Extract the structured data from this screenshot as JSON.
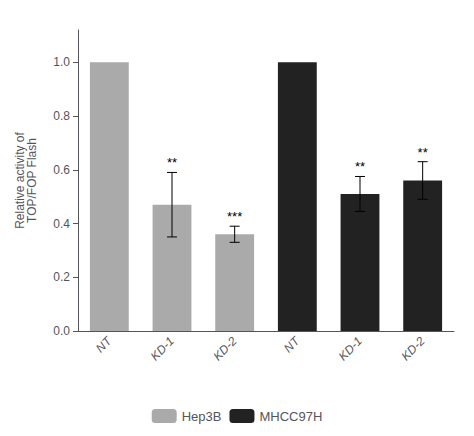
{
  "chart_data": {
    "type": "bar",
    "y_label": "Relative activity of\nTOP/FOP Flash",
    "categories": [
      "NT",
      "KD-1",
      "KD-2",
      "NT",
      "KD-1",
      "KD-2"
    ],
    "series": [
      {
        "name": "Hep3B",
        "color": "#aaaaaa",
        "values": [
          1.0,
          0.47,
          0.36,
          null,
          null,
          null
        ],
        "errors": [
          0.0,
          0.12,
          0.03,
          null,
          null,
          null
        ],
        "significance": [
          null,
          "**",
          "***",
          null,
          null,
          null
        ]
      },
      {
        "name": "MHCC97H",
        "color": "#222222",
        "values": [
          null,
          null,
          null,
          1.0,
          0.51,
          0.56
        ],
        "errors": [
          null,
          null,
          null,
          0.0,
          0.065,
          0.07
        ],
        "significance": [
          null,
          null,
          null,
          null,
          "**",
          "**"
        ]
      }
    ],
    "ylim": [
      0.0,
      1.12
    ],
    "yticks": [
      {
        "value": 0.0,
        "label": "0.0"
      },
      0.2,
      0.4,
      0.6,
      0.8,
      {
        "value": 1.0,
        "label": "1.0"
      }
    ],
    "grid": false,
    "legend": "bottom"
  }
}
